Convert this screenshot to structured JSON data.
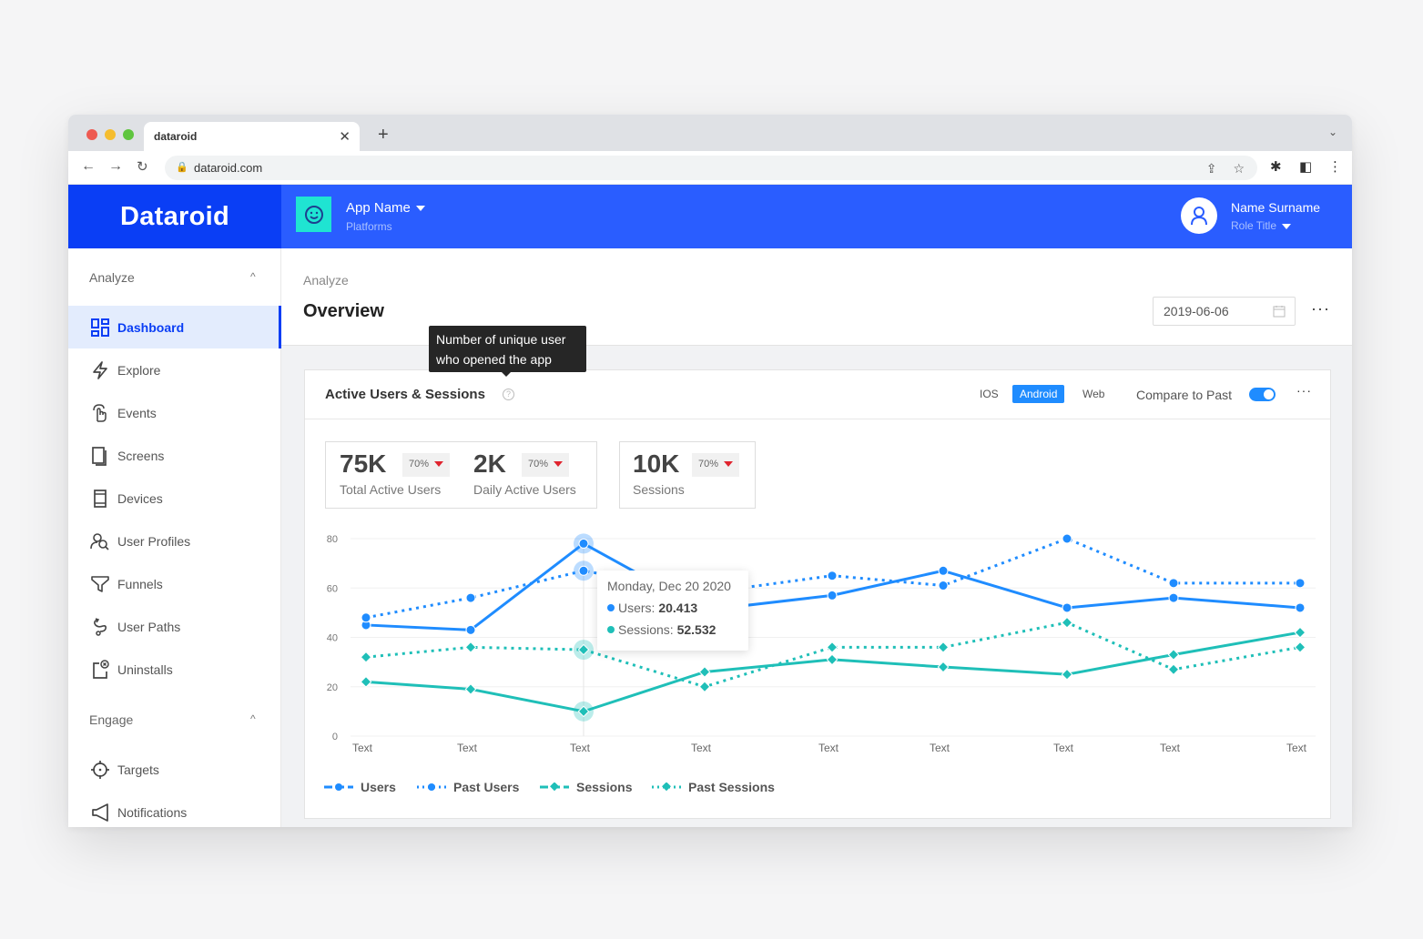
{
  "browser": {
    "tab_title": "dataroid",
    "url": "dataroid.com",
    "traffic_lights": [
      "#ee5a52",
      "#f5bd2f",
      "#5fc53f"
    ]
  },
  "header": {
    "logo": "Dataroid",
    "app_name": "App Name",
    "app_sub": "Platforms",
    "user_name": "Name Surname",
    "user_role": "Role Title",
    "colors": {
      "logo_bg": "#0a3ef5",
      "bar_bg": "#2a5dff",
      "app_icon_bg": "#1fe4d2"
    }
  },
  "sidebar": {
    "sections": [
      {
        "label": "Analyze",
        "items": [
          {
            "label": "Dashboard",
            "icon": "dashboard-grid-icon",
            "active": true
          },
          {
            "label": "Explore",
            "icon": "lightning-icon"
          },
          {
            "label": "Events",
            "icon": "tap-hand-icon"
          },
          {
            "label": "Screens",
            "icon": "screens-icon"
          },
          {
            "label": "Devices",
            "icon": "device-icon"
          },
          {
            "label": "User Profiles",
            "icon": "user-profiles-icon"
          },
          {
            "label": "Funnels",
            "icon": "funnel-icon"
          },
          {
            "label": "User Paths",
            "icon": "path-icon"
          },
          {
            "label": "Uninstalls",
            "icon": "uninstall-icon"
          }
        ]
      },
      {
        "label": "Engage",
        "items": [
          {
            "label": "Targets",
            "icon": "target-icon"
          },
          {
            "label": "Notifications",
            "icon": "megaphone-icon"
          }
        ]
      }
    ]
  },
  "page": {
    "breadcrumb": "Analyze",
    "title": "Overview",
    "date": "2019-06-06"
  },
  "tooltip": {
    "line1": "Number of unique user",
    "line2": "who opened the app"
  },
  "card": {
    "title": "Active Users & Sessions",
    "platforms": [
      "IOS",
      "Android",
      "Web"
    ],
    "active_platform": "Android",
    "compare_label": "Compare to Past",
    "compare_on": true,
    "kpis": [
      {
        "value": "75K",
        "label": "Total Active Users",
        "change": "70%",
        "trend": "down"
      },
      {
        "value": "2K",
        "label": "Daily Active Users",
        "change": "70%",
        "trend": "down"
      },
      {
        "value": "10K",
        "label": "Sessions",
        "change": "70%",
        "trend": "down"
      }
    ]
  },
  "chart_tooltip": {
    "date": "Monday, Dec 20 2020",
    "users_label": "Users:",
    "users_value": "20.413",
    "sessions_label": "Sessions:",
    "sessions_value": "52.532"
  },
  "chart_data": {
    "type": "line",
    "title": "Active Users & Sessions",
    "categories": [
      "Text",
      "Text",
      "Text",
      "Text",
      "Text",
      "Text",
      "Text",
      "Text",
      "Text"
    ],
    "ylim": [
      0,
      80
    ],
    "yticks": [
      0,
      20,
      40,
      60,
      80
    ],
    "grid": true,
    "legend_position": "bottom-left",
    "series": [
      {
        "name": "Users",
        "style": "solid",
        "marker": "circle",
        "color": "#1f8cff",
        "values": [
          45,
          43,
          78,
          51,
          57,
          67,
          52,
          56,
          52
        ]
      },
      {
        "name": "Past Users",
        "style": "dotted",
        "marker": "circle",
        "color": "#1f8cff",
        "values": [
          48,
          56,
          67,
          58,
          65,
          61,
          80,
          62,
          62
        ]
      },
      {
        "name": "Sessions",
        "style": "solid",
        "marker": "diamond",
        "color": "#1fbfb8",
        "values": [
          22,
          19,
          10,
          26,
          31,
          28,
          25,
          33,
          42
        ]
      },
      {
        "name": "Past Sessions",
        "style": "dotted",
        "marker": "diamond",
        "color": "#1fbfb8",
        "values": [
          32,
          36,
          35,
          20,
          36,
          36,
          46,
          27,
          36
        ]
      }
    ],
    "highlight_index": 2
  }
}
